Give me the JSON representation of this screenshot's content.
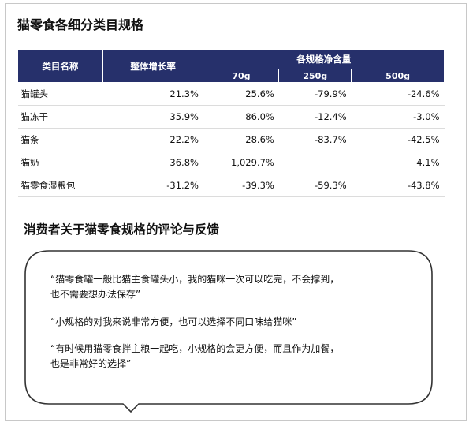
{
  "title": "猫零食各细分类目规格",
  "table": {
    "header_category": "类目名称",
    "header_growth": "整体增长率",
    "header_sizes": "各规格净含量",
    "sizes": [
      "70g",
      "250g",
      "500g"
    ],
    "rows": [
      {
        "category": "猫罐头",
        "growth": "21.3%",
        "v70": "25.6%",
        "v250": "-79.9%",
        "v500": "-24.6%"
      },
      {
        "category": "猫冻干",
        "growth": "35.9%",
        "v70": "86.0%",
        "v250": "-12.4%",
        "v500": "-3.0%"
      },
      {
        "category": "猫条",
        "growth": "22.2%",
        "v70": "28.6%",
        "v250": "-83.7%",
        "v500": "-42.5%"
      },
      {
        "category": "猫奶",
        "growth": "36.8%",
        "v70": "1,029.7%",
        "v250": "",
        "v500": "4.1%"
      },
      {
        "category": "猫零食湿粮包",
        "growth": "-31.2%",
        "v70": "-39.3%",
        "v250": "-59.3%",
        "v500": "-43.8%"
      }
    ]
  },
  "feedback_title": "消费者关于猫零食规格的评论与反馈",
  "quotes": [
    [
      "“猫零食罐一般比猫主食罐头小，我的猫咪一次可以吃完，不会撑到，",
      "也不需要想办法保存”"
    ],
    [
      "“小规格的对我来说非常方便，也可以选择不同口味给猫咪”"
    ],
    [
      "“有时候用猫零食拌主粮一起吃，小规格的会更方便，而且作为加餐，",
      "也是非常好的选择”"
    ]
  ],
  "colors": {
    "header_bg": "#26306b",
    "header_text": "#ffffff"
  }
}
